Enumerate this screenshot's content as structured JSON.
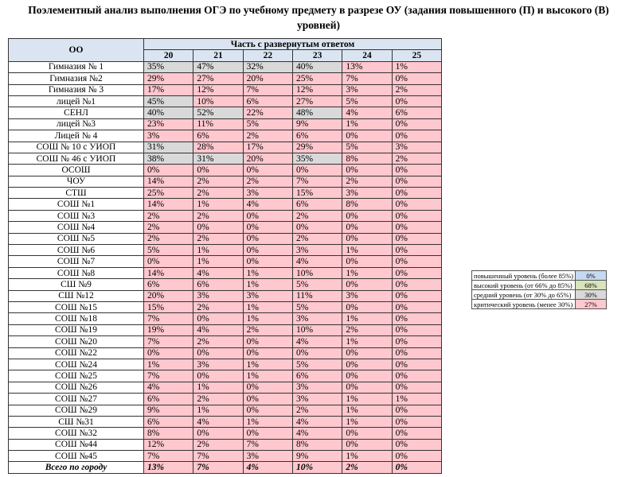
{
  "title": "Поэлементный анализ выполнения ОГЭ по учебному предмету в разрезе ОУ (задания повышенного (П) и высокого (В) уровней)",
  "table": {
    "header": {
      "org": "ОО",
      "group": "Часть с развернутым ответом",
      "columns": [
        "20",
        "21",
        "22",
        "23",
        "24",
        "25"
      ]
    },
    "rows": [
      {
        "name": "Гимназия № 1",
        "cells": [
          "35%",
          "47%",
          "32%",
          "40%",
          "13%",
          "1%"
        ]
      },
      {
        "name": "Гимназия №2",
        "cells": [
          "29%",
          "27%",
          "20%",
          "25%",
          "7%",
          "0%"
        ]
      },
      {
        "name": "Гимназия № 3",
        "cells": [
          "17%",
          "12%",
          "7%",
          "12%",
          "3%",
          "2%"
        ]
      },
      {
        "name": "лицей №1",
        "cells": [
          "45%",
          "10%",
          "6%",
          "27%",
          "5%",
          "0%"
        ]
      },
      {
        "name": "СЕНЛ",
        "cells": [
          "40%",
          "52%",
          "22%",
          "48%",
          "4%",
          "6%"
        ]
      },
      {
        "name": "лицей №3",
        "cells": [
          "23%",
          "11%",
          "5%",
          "9%",
          "1%",
          "0%"
        ]
      },
      {
        "name": "Лицей № 4",
        "cells": [
          "3%",
          "6%",
          "2%",
          "6%",
          "0%",
          "0%"
        ]
      },
      {
        "name": "СОШ № 10 с УИОП",
        "cells": [
          "31%",
          "28%",
          "17%",
          "29%",
          "5%",
          "3%"
        ]
      },
      {
        "name": "СОШ № 46 с УИОП",
        "cells": [
          "38%",
          "31%",
          "20%",
          "35%",
          "8%",
          "2%"
        ]
      },
      {
        "name": "ОСОШ",
        "cells": [
          "0%",
          "0%",
          "0%",
          "0%",
          "0%",
          "0%"
        ]
      },
      {
        "name": "ЧОУ",
        "cells": [
          "14%",
          "2%",
          "2%",
          "7%",
          "2%",
          "0%"
        ]
      },
      {
        "name": "СТШ",
        "cells": [
          "25%",
          "2%",
          "3%",
          "15%",
          "3%",
          "0%"
        ]
      },
      {
        "name": "СОШ №1",
        "cells": [
          "14%",
          "1%",
          "4%",
          "6%",
          "8%",
          "0%"
        ]
      },
      {
        "name": "СОШ №3",
        "cells": [
          "2%",
          "2%",
          "0%",
          "2%",
          "0%",
          "0%"
        ]
      },
      {
        "name": "СОШ №4",
        "cells": [
          "2%",
          "0%",
          "0%",
          "0%",
          "0%",
          "0%"
        ]
      },
      {
        "name": "СОШ №5",
        "cells": [
          "2%",
          "2%",
          "0%",
          "2%",
          "0%",
          "0%"
        ]
      },
      {
        "name": "СОШ №6",
        "cells": [
          "5%",
          "1%",
          "0%",
          "3%",
          "1%",
          "0%"
        ]
      },
      {
        "name": "СОШ №7",
        "cells": [
          "0%",
          "1%",
          "0%",
          "4%",
          "0%",
          "0%"
        ]
      },
      {
        "name": "СОШ №8",
        "cells": [
          "14%",
          "4%",
          "1%",
          "10%",
          "1%",
          "0%"
        ]
      },
      {
        "name": "СШ №9",
        "cells": [
          "6%",
          "6%",
          "1%",
          "5%",
          "0%",
          "0%"
        ]
      },
      {
        "name": "СШ №12",
        "cells": [
          "20%",
          "3%",
          "3%",
          "11%",
          "3%",
          "0%"
        ]
      },
      {
        "name": "СОШ №15",
        "cells": [
          "15%",
          "2%",
          "1%",
          "5%",
          "0%",
          "0%"
        ]
      },
      {
        "name": "СОШ №18",
        "cells": [
          "7%",
          "0%",
          "1%",
          "3%",
          "1%",
          "0%"
        ]
      },
      {
        "name": "СОШ №19",
        "cells": [
          "19%",
          "4%",
          "2%",
          "10%",
          "2%",
          "0%"
        ]
      },
      {
        "name": "СОШ №20",
        "cells": [
          "7%",
          "2%",
          "0%",
          "4%",
          "1%",
          "0%"
        ]
      },
      {
        "name": "СОШ №22",
        "cells": [
          "0%",
          "0%",
          "0%",
          "0%",
          "0%",
          "0%"
        ]
      },
      {
        "name": "СОШ №24",
        "cells": [
          "1%",
          "3%",
          "1%",
          "5%",
          "0%",
          "0%"
        ]
      },
      {
        "name": "СОШ №25",
        "cells": [
          "7%",
          "0%",
          "1%",
          "6%",
          "0%",
          "0%"
        ]
      },
      {
        "name": "СОШ №26",
        "cells": [
          "4%",
          "1%",
          "0%",
          "3%",
          "0%",
          "0%"
        ]
      },
      {
        "name": "СОШ №27",
        "cells": [
          "6%",
          "2%",
          "0%",
          "3%",
          "1%",
          "1%"
        ]
      },
      {
        "name": "СОШ №29",
        "cells": [
          "9%",
          "1%",
          "0%",
          "2%",
          "1%",
          "0%"
        ]
      },
      {
        "name": "СШ №31",
        "cells": [
          "6%",
          "4%",
          "1%",
          "4%",
          "1%",
          "0%"
        ]
      },
      {
        "name": "СОШ №32",
        "cells": [
          "8%",
          "0%",
          "0%",
          "4%",
          "0%",
          "0%"
        ]
      },
      {
        "name": "СОШ №44",
        "cells": [
          "12%",
          "2%",
          "7%",
          "8%",
          "0%",
          "0%"
        ]
      },
      {
        "name": "СОШ №45",
        "cells": [
          "7%",
          "7%",
          "3%",
          "9%",
          "1%",
          "0%"
        ]
      }
    ],
    "total": {
      "name": "Всего по городу",
      "cells": [
        "13%",
        "7%",
        "4%",
        "10%",
        "2%",
        "0%"
      ]
    }
  },
  "legend": [
    {
      "label": "повышенный уровень (более 85%)",
      "value": "0%",
      "color": "#c5d9f1"
    },
    {
      "label": "высокий уровень (от 66% до 85%)",
      "value": "68%",
      "color": "#d8e4bc"
    },
    {
      "label": "средний уровень (от 30% до 65%)",
      "value": "30%",
      "color": "#d9d9d9"
    },
    {
      "label": "критический уровень (менее 30%)",
      "value": "27%",
      "color": "#ffc7ce"
    }
  ]
}
